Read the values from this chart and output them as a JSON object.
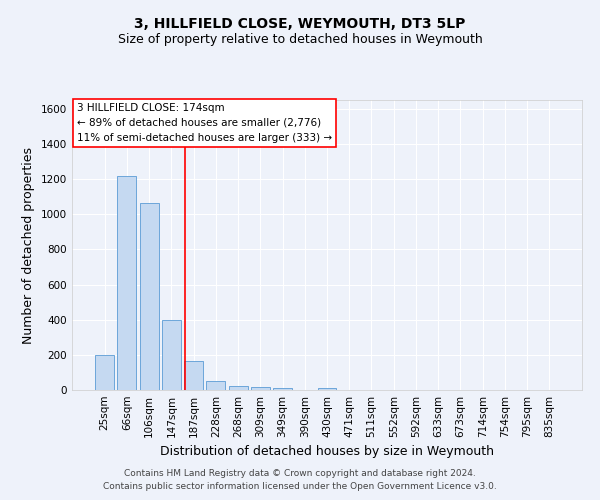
{
  "title": "3, HILLFIELD CLOSE, WEYMOUTH, DT3 5LP",
  "subtitle": "Size of property relative to detached houses in Weymouth",
  "xlabel": "Distribution of detached houses by size in Weymouth",
  "ylabel": "Number of detached properties",
  "footnote1": "Contains HM Land Registry data © Crown copyright and database right 2024.",
  "footnote2": "Contains public sector information licensed under the Open Government Licence v3.0.",
  "categories": [
    "25sqm",
    "66sqm",
    "106sqm",
    "147sqm",
    "187sqm",
    "228sqm",
    "268sqm",
    "309sqm",
    "349sqm",
    "390sqm",
    "430sqm",
    "471sqm",
    "511sqm",
    "552sqm",
    "592sqm",
    "633sqm",
    "673sqm",
    "714sqm",
    "754sqm",
    "795sqm",
    "835sqm"
  ],
  "values": [
    200,
    1215,
    1063,
    400,
    163,
    52,
    25,
    15,
    10,
    0,
    12,
    0,
    0,
    0,
    0,
    0,
    0,
    0,
    0,
    0,
    0
  ],
  "bar_color": "#c5d9f1",
  "bar_edge_color": "#5b9bd5",
  "vline_pos": 3.6,
  "vline_color": "red",
  "annotation_line1": "3 HILLFIELD CLOSE: 174sqm",
  "annotation_line2": "← 89% of detached houses are smaller (2,776)",
  "annotation_line3": "11% of semi-detached houses are larger (333) →",
  "annotation_box_color": "red",
  "ylim": [
    0,
    1650
  ],
  "yticks": [
    0,
    200,
    400,
    600,
    800,
    1000,
    1200,
    1400,
    1600
  ],
  "bg_color": "#eef2fa",
  "plot_bg_color": "#eef2fa",
  "grid_color": "white",
  "title_fontsize": 10,
  "subtitle_fontsize": 9,
  "axis_label_fontsize": 9,
  "tick_fontsize": 7.5,
  "annotation_fontsize": 7.5,
  "footnote_fontsize": 6.5
}
